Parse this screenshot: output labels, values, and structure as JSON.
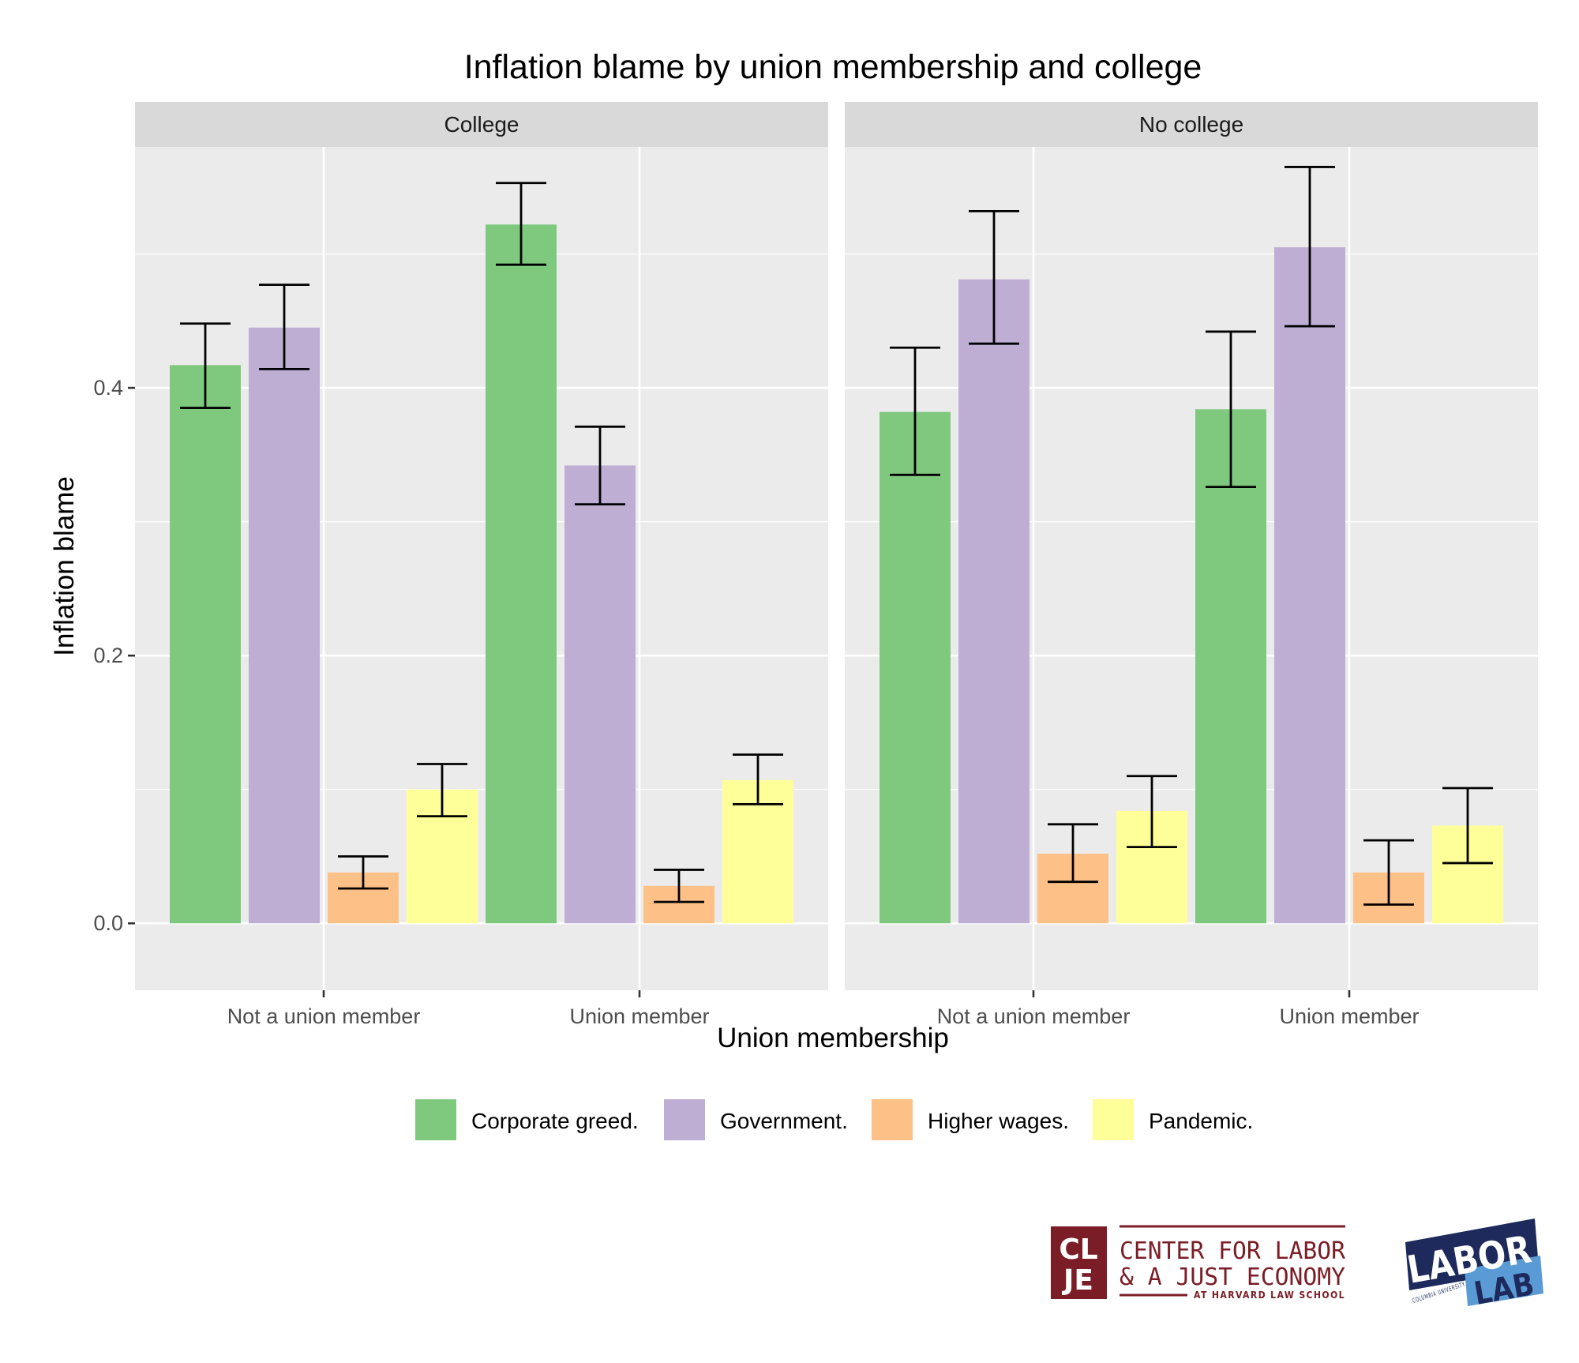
{
  "chart_data": {
    "type": "bar",
    "title": "Inflation blame by union membership and college",
    "xlabel": "Union membership",
    "ylabel": "Inflation blame",
    "ylim": [
      -0.05,
      0.58
    ],
    "yticks": [
      0.0,
      0.2,
      0.4
    ],
    "ytick_labels": [
      "0.0",
      "0.2",
      "0.4"
    ],
    "grid": true,
    "legend_position": "bottom",
    "categories": [
      "Not a union member",
      "Union member"
    ],
    "series_names": [
      "Corporate greed.",
      "Government.",
      "Higher wages.",
      "Pandemic."
    ],
    "series_colors": [
      "#7fc97f",
      "#beaed4",
      "#fdc086",
      "#ffff99"
    ],
    "panels": [
      {
        "label": "College",
        "series": [
          {
            "name": "Corporate greed.",
            "values": [
              0.417,
              0.522
            ],
            "lower": [
              0.385,
              0.492
            ],
            "upper": [
              0.448,
              0.553
            ]
          },
          {
            "name": "Government.",
            "values": [
              0.445,
              0.342
            ],
            "lower": [
              0.414,
              0.313
            ],
            "upper": [
              0.477,
              0.371
            ]
          },
          {
            "name": "Higher wages.",
            "values": [
              0.038,
              0.028
            ],
            "lower": [
              0.026,
              0.016
            ],
            "upper": [
              0.05,
              0.04
            ]
          },
          {
            "name": "Pandemic.",
            "values": [
              0.1,
              0.107
            ],
            "lower": [
              0.08,
              0.089
            ],
            "upper": [
              0.119,
              0.126
            ]
          }
        ]
      },
      {
        "label": "No college",
        "series": [
          {
            "name": "Corporate greed.",
            "values": [
              0.382,
              0.384
            ],
            "lower": [
              0.335,
              0.326
            ],
            "upper": [
              0.43,
              0.442
            ]
          },
          {
            "name": "Government.",
            "values": [
              0.481,
              0.505
            ],
            "lower": [
              0.433,
              0.446
            ],
            "upper": [
              0.532,
              0.565
            ]
          },
          {
            "name": "Higher wages.",
            "values": [
              0.052,
              0.038
            ],
            "lower": [
              0.031,
              0.014
            ],
            "upper": [
              0.074,
              0.062
            ]
          },
          {
            "name": "Pandemic.",
            "values": [
              0.084,
              0.073
            ],
            "lower": [
              0.057,
              0.045
            ],
            "upper": [
              0.11,
              0.101
            ]
          }
        ]
      }
    ]
  },
  "logos": {
    "clje": {
      "letters_line1": "CL",
      "letters_line2": "JE",
      "line1": "CENTER FOR LABOR",
      "line2": "& A JUST ECONOMY",
      "line3": "AT HARVARD LAW SCHOOL",
      "color": "#7a1d26"
    },
    "labor_lab": {
      "word1": "LABOR",
      "word2": "LAB",
      "curve_text": "COLUMBIA UNIVERSITY",
      "color_dark": "#1d2a5b",
      "color_light": "#5b9bd5"
    }
  }
}
